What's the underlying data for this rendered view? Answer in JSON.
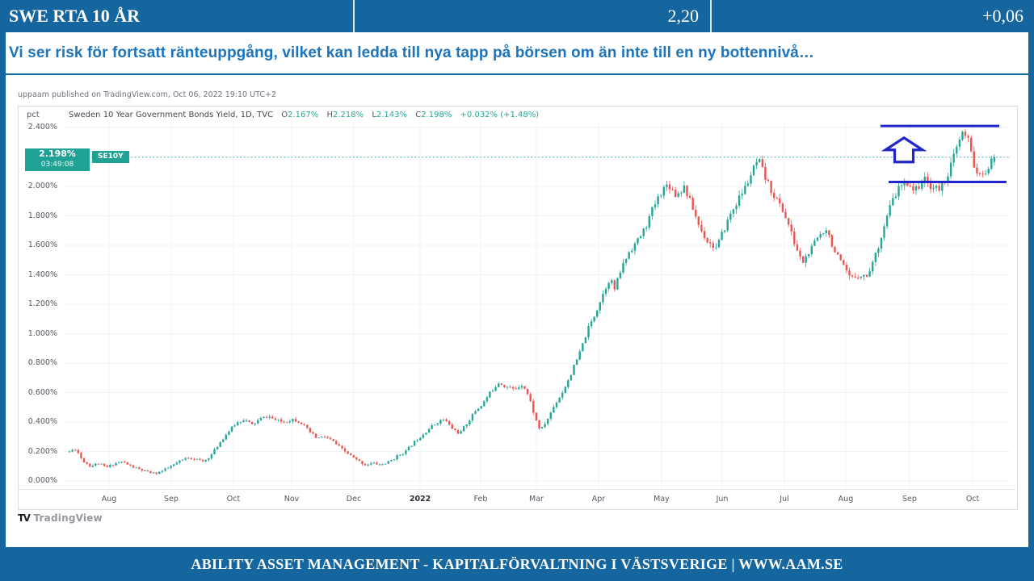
{
  "colors": {
    "brand_blue": "#15669E",
    "subtitle_blue": "#1B74BC",
    "candle_up": "#26a69a",
    "candle_down": "#ef5350",
    "annotation_blue": "#2126CC",
    "grid": "#f0f3fa",
    "badge_teal": "#1fa193"
  },
  "header": {
    "instrument": "SWE RTA 10 ÅR",
    "price": "2,20",
    "change": "+0,06"
  },
  "subtitle": {
    "text": "Vi ser risk för fortsatt ränteuppgång, vilket kan ledda till nya tapp på börsen om än inte till en ny bottennivå…"
  },
  "chart": {
    "published_line": "uppaam published on TradingView.com, Oct 06, 2022 19:10 UTC+2",
    "unit_label": "pct",
    "legend": {
      "title": "Sweden 10 Year Government Bonds Yield, 1D, TVC",
      "o_label": "O",
      "o": "2.167%",
      "h_label": "H",
      "h": "2.218%",
      "l_label": "L",
      "l": "2.143%",
      "c_label": "C",
      "c": "2.198%",
      "change": "+0.032% (+1.48%)"
    },
    "price_badge": {
      "price": "2.198%",
      "countdown": "03:49:08",
      "symbol": "SE10Y"
    },
    "watermark_glyph": "TV",
    "watermark": "TradingView"
  },
  "chart_data": {
    "type": "candlestick",
    "title": "Sweden 10 Year Government Bonds Yield, 1D, TVC",
    "ylabel": "pct",
    "ylim": [
      0.0,
      2.4
    ],
    "grid": true,
    "last_bar": {
      "open": 2.167,
      "high": 2.218,
      "low": 2.143,
      "close": 2.198,
      "change": "+0.032%",
      "change_pct": "+1.48%"
    },
    "current_price_line": 2.198,
    "yticks": [
      {
        "label": "2.400%",
        "v": 2.4
      },
      {
        "label": "2.000%",
        "v": 2.0
      },
      {
        "label": "1.800%",
        "v": 1.8
      },
      {
        "label": "1.600%",
        "v": 1.6
      },
      {
        "label": "1.400%",
        "v": 1.4
      },
      {
        "label": "1.200%",
        "v": 1.2
      },
      {
        "label": "1.000%",
        "v": 1.0
      },
      {
        "label": "0.800%",
        "v": 0.8
      },
      {
        "label": "0.600%",
        "v": 0.6
      },
      {
        "label": "0.400%",
        "v": 0.4
      },
      {
        "label": "0.200%",
        "v": 0.2
      },
      {
        "label": "0.000%",
        "v": 0.0
      }
    ],
    "gridline_values": [
      0.0,
      0.2,
      0.4,
      0.6,
      0.8,
      1.0,
      1.2,
      1.4,
      1.6,
      1.8,
      2.0,
      2.2,
      2.4
    ],
    "xticks": [
      {
        "label": "Aug",
        "f": 0.0494
      },
      {
        "label": "Sep",
        "f": 0.115
      },
      {
        "label": "Oct",
        "f": 0.1806
      },
      {
        "label": "Nov",
        "f": 0.2419
      },
      {
        "label": "Dec",
        "f": 0.3075
      },
      {
        "label": "2022",
        "f": 0.3774,
        "year": true
      },
      {
        "label": "Feb",
        "f": 0.4412
      },
      {
        "label": "Mar",
        "f": 0.5
      },
      {
        "label": "Apr",
        "f": 0.5656
      },
      {
        "label": "May",
        "f": 0.632
      },
      {
        "label": "Jun",
        "f": 0.6959
      },
      {
        "label": "Jul",
        "f": 0.7615
      },
      {
        "label": "Aug",
        "f": 0.8262
      },
      {
        "label": "Sep",
        "f": 0.8935
      },
      {
        "label": "Oct",
        "f": 0.96
      }
    ],
    "path": [
      [
        0.0077,
        0.2
      ],
      [
        0.0145,
        0.22
      ],
      [
        0.0213,
        0.14
      ],
      [
        0.0298,
        0.1
      ],
      [
        0.0383,
        0.12
      ],
      [
        0.0468,
        0.09
      ],
      [
        0.0554,
        0.12
      ],
      [
        0.0639,
        0.13
      ],
      [
        0.0724,
        0.1
      ],
      [
        0.0809,
        0.08
      ],
      [
        0.0894,
        0.06
      ],
      [
        0.098,
        0.05
      ],
      [
        0.1065,
        0.07
      ],
      [
        0.115,
        0.1
      ],
      [
        0.1235,
        0.13
      ],
      [
        0.132,
        0.16
      ],
      [
        0.1405,
        0.15
      ],
      [
        0.1491,
        0.13
      ],
      [
        0.1576,
        0.18
      ],
      [
        0.1661,
        0.26
      ],
      [
        0.1746,
        0.33
      ],
      [
        0.1831,
        0.39
      ],
      [
        0.1916,
        0.42
      ],
      [
        0.2002,
        0.38
      ],
      [
        0.2087,
        0.42
      ],
      [
        0.2172,
        0.44
      ],
      [
        0.2257,
        0.41
      ],
      [
        0.2342,
        0.4
      ],
      [
        0.2428,
        0.42
      ],
      [
        0.2513,
        0.4
      ],
      [
        0.2598,
        0.34
      ],
      [
        0.2683,
        0.29
      ],
      [
        0.2768,
        0.3
      ],
      [
        0.2853,
        0.27
      ],
      [
        0.2939,
        0.22
      ],
      [
        0.3024,
        0.18
      ],
      [
        0.3109,
        0.14
      ],
      [
        0.3194,
        0.11
      ],
      [
        0.3279,
        0.12
      ],
      [
        0.3365,
        0.11
      ],
      [
        0.345,
        0.13
      ],
      [
        0.3535,
        0.17
      ],
      [
        0.362,
        0.2
      ],
      [
        0.3705,
        0.26
      ],
      [
        0.379,
        0.31
      ],
      [
        0.3876,
        0.36
      ],
      [
        0.3961,
        0.4
      ],
      [
        0.4029,
        0.42
      ],
      [
        0.4106,
        0.36
      ],
      [
        0.4191,
        0.32
      ],
      [
        0.4276,
        0.4
      ],
      [
        0.4361,
        0.48
      ],
      [
        0.4429,
        0.52
      ],
      [
        0.4514,
        0.6
      ],
      [
        0.46,
        0.67
      ],
      [
        0.4685,
        0.64
      ],
      [
        0.477,
        0.62
      ],
      [
        0.4855,
        0.66
      ],
      [
        0.4923,
        0.57
      ],
      [
        0.4991,
        0.42
      ],
      [
        0.5043,
        0.34
      ],
      [
        0.5111,
        0.41
      ],
      [
        0.5196,
        0.52
      ],
      [
        0.5281,
        0.61
      ],
      [
        0.5366,
        0.73
      ],
      [
        0.5452,
        0.86
      ],
      [
        0.5537,
        1.02
      ],
      [
        0.5622,
        1.14
      ],
      [
        0.5707,
        1.28
      ],
      [
        0.5775,
        1.38
      ],
      [
        0.5826,
        1.3
      ],
      [
        0.5894,
        1.44
      ],
      [
        0.598,
        1.56
      ],
      [
        0.6065,
        1.63
      ],
      [
        0.615,
        1.72
      ],
      [
        0.6235,
        1.86
      ],
      [
        0.632,
        1.97
      ],
      [
        0.6388,
        2.02
      ],
      [
        0.6473,
        1.94
      ],
      [
        0.6559,
        2.0
      ],
      [
        0.6644,
        1.86
      ],
      [
        0.6729,
        1.71
      ],
      [
        0.6814,
        1.62
      ],
      [
        0.6899,
        1.58
      ],
      [
        0.6967,
        1.69
      ],
      [
        0.7052,
        1.82
      ],
      [
        0.7138,
        1.92
      ],
      [
        0.7223,
        2.02
      ],
      [
        0.7291,
        2.12
      ],
      [
        0.7342,
        2.18
      ],
      [
        0.741,
        2.06
      ],
      [
        0.7495,
        1.95
      ],
      [
        0.7581,
        1.86
      ],
      [
        0.7649,
        1.76
      ],
      [
        0.7717,
        1.62
      ],
      [
        0.7802,
        1.48
      ],
      [
        0.7887,
        1.56
      ],
      [
        0.7972,
        1.66
      ],
      [
        0.8058,
        1.72
      ],
      [
        0.8143,
        1.56
      ],
      [
        0.8228,
        1.46
      ],
      [
        0.8313,
        1.37
      ],
      [
        0.8398,
        1.4
      ],
      [
        0.8484,
        1.39
      ],
      [
        0.8569,
        1.52
      ],
      [
        0.8654,
        1.7
      ],
      [
        0.8739,
        1.88
      ],
      [
        0.8824,
        1.99
      ],
      [
        0.891,
        2.03
      ],
      [
        0.8995,
        1.97
      ],
      [
        0.908,
        2.05
      ],
      [
        0.9165,
        2.0
      ],
      [
        0.925,
        1.98
      ],
      [
        0.9336,
        2.08
      ],
      [
        0.9421,
        2.24
      ],
      [
        0.9489,
        2.36
      ],
      [
        0.9557,
        2.31
      ],
      [
        0.9625,
        2.12
      ],
      [
        0.9693,
        2.05
      ],
      [
        0.9761,
        2.13
      ],
      [
        0.9829,
        2.19
      ]
    ],
    "annotations": {
      "resistance_line": {
        "value": 2.41,
        "from_f": 0.8629,
        "to_f": 0.9881
      },
      "support_line": {
        "value": 2.03,
        "from_f": 0.8714,
        "to_f": 0.9957
      },
      "up_arrow": {
        "f": 0.8876,
        "tip_value": 2.33
      }
    }
  },
  "footer": {
    "text": "ABILITY ASSET MANAGEMENT -  KAPITALFÖRVALTNING I VÄSTSVERIGE   |   WWW.AAM.SE"
  }
}
